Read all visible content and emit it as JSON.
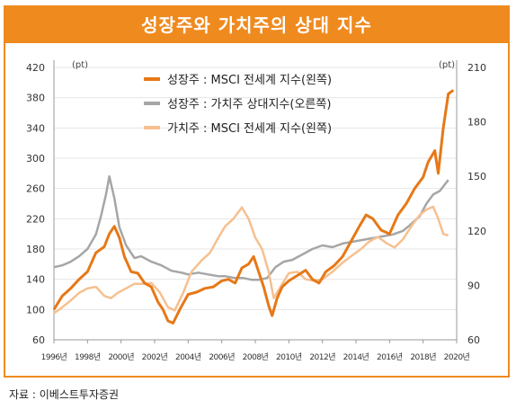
{
  "source_label": "자료 : 이베스트투자증권",
  "chart_data": {
    "type": "line",
    "title": "성장주와 가치주의 상대 지수",
    "left_unit": "(pt)",
    "right_unit": "(pt)",
    "y_left_ticks": [
      "420",
      "380",
      "340",
      "300",
      "260",
      "220",
      "180",
      "140",
      "100",
      "60"
    ],
    "y_right_ticks": [
      "210",
      "180",
      "150",
      "120",
      "90",
      "60"
    ],
    "x_tick_labels": [
      "1996년",
      "1998년",
      "2000년",
      "2002년",
      "2004년",
      "2006년",
      "2008년",
      "2010년",
      "2012년",
      "2014년",
      "2016년",
      "2018년",
      "2020년"
    ],
    "ylim_left": [
      60,
      420
    ],
    "ylim_right": [
      60,
      210
    ],
    "xlim": [
      1996,
      2020
    ],
    "legend_position": "top-center",
    "colors": {
      "growth": "#e67817",
      "relative": "#a6a6a6",
      "value": "#f6c08f",
      "frame": "#ef8a1f"
    },
    "series": [
      {
        "name": "성장주 : MSCI 전세계 지수(왼쪽)",
        "axis": "left",
        "x": [
          1996.0,
          1996.5,
          1997.0,
          1997.5,
          1998.0,
          1998.5,
          1999.0,
          1999.3,
          1999.6,
          1999.9,
          2000.2,
          2000.6,
          2001.0,
          2001.4,
          2001.8,
          2002.2,
          2002.5,
          2002.8,
          2003.1,
          2003.5,
          2004.0,
          2004.5,
          2005.0,
          2005.5,
          2006.0,
          2006.4,
          2006.8,
          2007.2,
          2007.6,
          2007.9,
          2008.2,
          2008.5,
          2008.8,
          2009.0,
          2009.3,
          2009.6,
          2010.0,
          2010.5,
          2011.0,
          2011.4,
          2011.8,
          2012.2,
          2012.7,
          2013.2,
          2013.7,
          2014.2,
          2014.6,
          2015.0,
          2015.5,
          2016.0,
          2016.5,
          2017.0,
          2017.5,
          2018.0,
          2018.3,
          2018.7,
          2018.9,
          2019.2,
          2019.5,
          2019.8
        ],
        "values": [
          100,
          118,
          128,
          140,
          150,
          175,
          183,
          200,
          210,
          195,
          170,
          150,
          148,
          135,
          130,
          110,
          100,
          85,
          82,
          100,
          120,
          123,
          128,
          130,
          138,
          140,
          135,
          155,
          160,
          170,
          150,
          130,
          105,
          92,
          115,
          130,
          138,
          145,
          152,
          140,
          135,
          150,
          158,
          170,
          190,
          210,
          225,
          220,
          205,
          200,
          225,
          240,
          260,
          275,
          295,
          310,
          280,
          340,
          385,
          390
        ]
      },
      {
        "name": "성장주 : 가치주 상대지수(오른쪽)",
        "axis": "right",
        "x": [
          1996.0,
          1996.5,
          1997.0,
          1997.5,
          1998.0,
          1998.5,
          1998.8,
          1999.1,
          1999.3,
          1999.6,
          1999.9,
          2000.3,
          2000.8,
          2001.2,
          2001.8,
          2002.4,
          2003.0,
          2003.6,
          2004.0,
          2004.6,
          2005.2,
          2005.8,
          2006.2,
          2006.8,
          2007.3,
          2007.8,
          2008.2,
          2008.7,
          2009.2,
          2009.7,
          2010.2,
          2010.8,
          2011.4,
          2012.0,
          2012.6,
          2013.2,
          2013.8,
          2014.4,
          2015.0,
          2015.6,
          2016.2,
          2016.8,
          2017.2,
          2017.8,
          2018.2,
          2018.6,
          2019.0,
          2019.5
        ],
        "values": [
          100,
          101,
          103,
          106,
          110,
          118,
          128,
          140,
          150,
          138,
          122,
          112,
          105,
          106,
          103,
          101,
          98,
          97,
          96,
          97,
          96,
          95,
          95,
          94,
          94,
          93,
          93,
          94,
          100,
          103,
          104,
          107,
          110,
          112,
          111,
          113,
          114,
          115,
          116,
          117,
          118,
          120,
          123,
          128,
          135,
          140,
          142,
          148
        ]
      },
      {
        "name": "가치주 : MSCI 전세계 지수(왼쪽)",
        "axis": "left",
        "x": [
          1996.0,
          1996.5,
          1997.0,
          1997.5,
          1998.0,
          1998.5,
          1999.0,
          1999.4,
          1999.8,
          2000.3,
          2000.8,
          2001.3,
          2001.8,
          2002.3,
          2002.8,
          2003.2,
          2003.7,
          2004.2,
          2004.8,
          2005.3,
          2005.8,
          2006.2,
          2006.7,
          2007.2,
          2007.6,
          2008.0,
          2008.4,
          2008.8,
          2009.1,
          2009.5,
          2010.0,
          2010.5,
          2011.0,
          2011.5,
          2012.0,
          2012.6,
          2013.2,
          2013.8,
          2014.3,
          2014.8,
          2015.3,
          2015.8,
          2016.3,
          2016.8,
          2017.3,
          2017.8,
          2018.2,
          2018.6,
          2018.9,
          2019.2,
          2019.5
        ],
        "values": [
          95,
          103,
          112,
          122,
          128,
          130,
          118,
          115,
          122,
          128,
          134,
          134,
          135,
          123,
          103,
          99,
          122,
          150,
          165,
          175,
          195,
          210,
          220,
          235,
          220,
          195,
          180,
          150,
          115,
          130,
          148,
          150,
          140,
          138,
          140,
          150,
          162,
          172,
          180,
          190,
          196,
          188,
          182,
          193,
          210,
          225,
          232,
          236,
          220,
          200,
          198
        ]
      }
    ]
  }
}
